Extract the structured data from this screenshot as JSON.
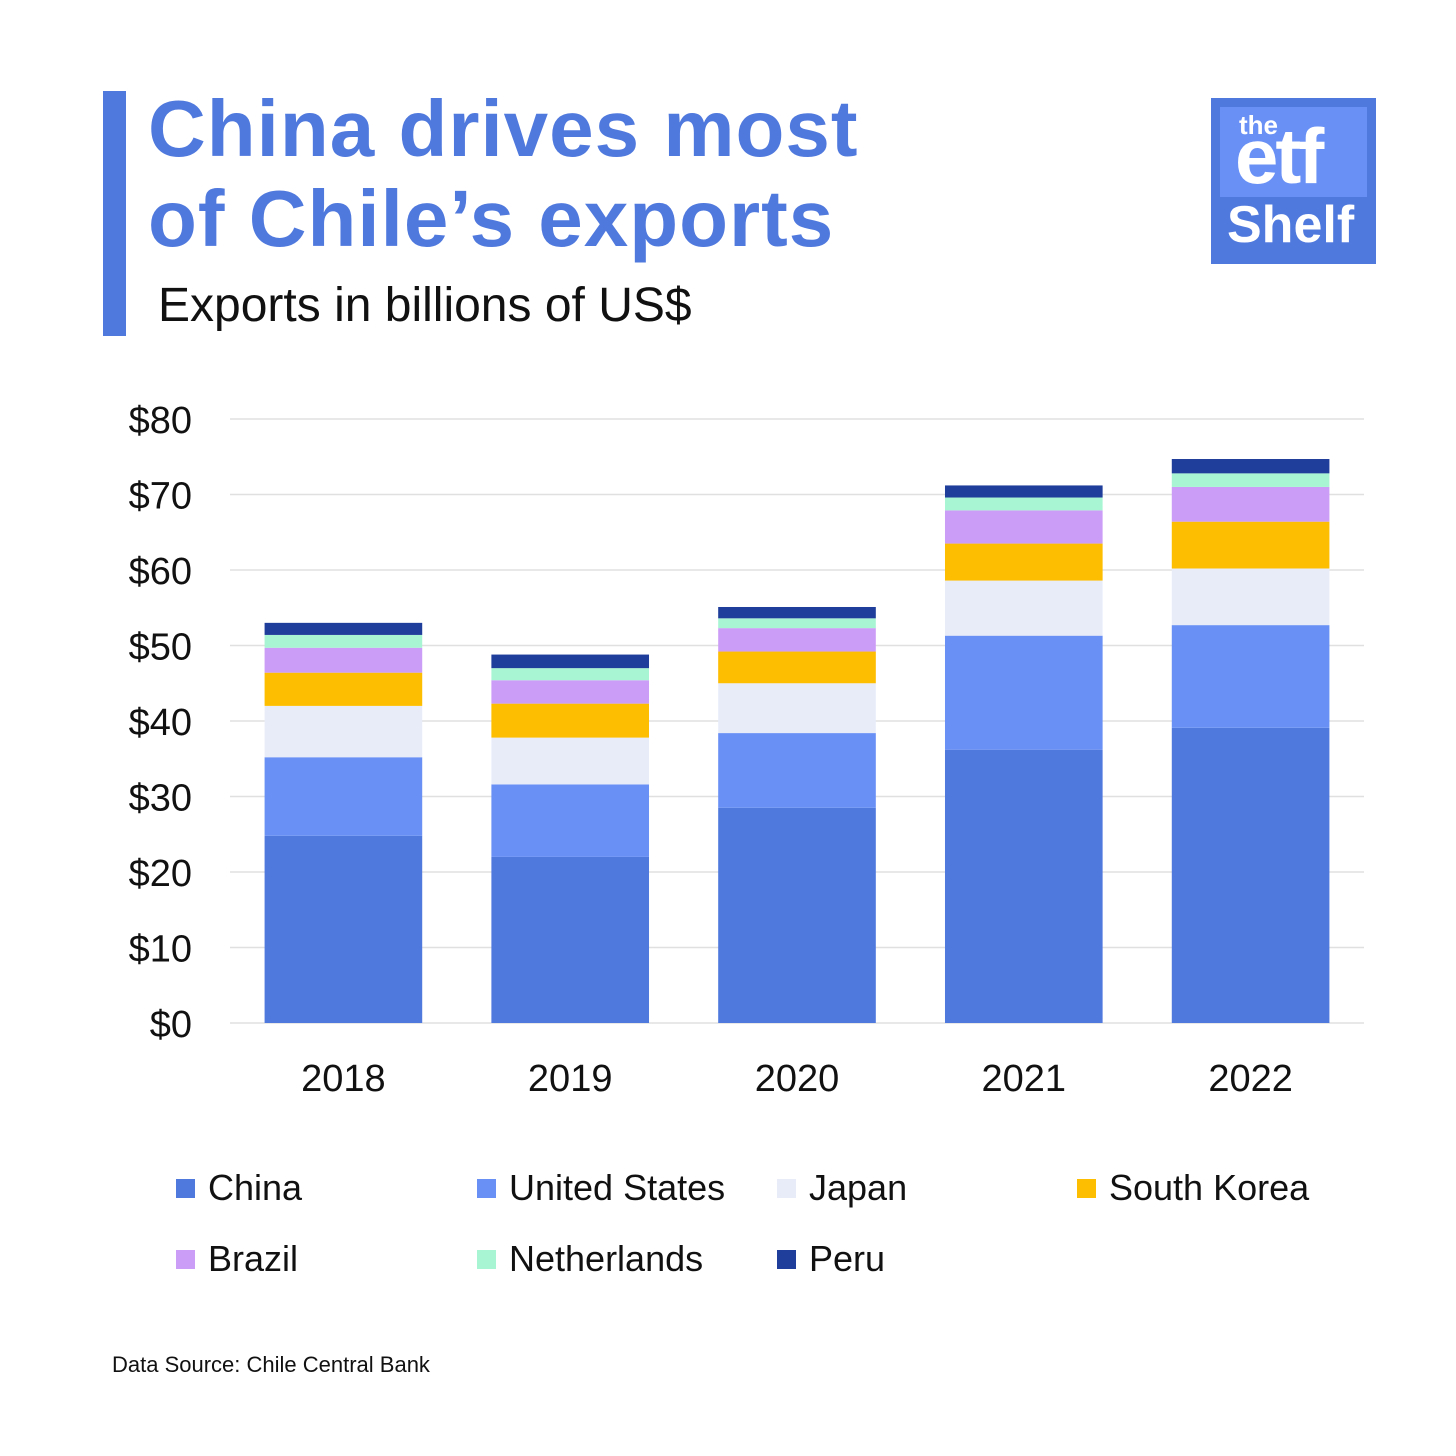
{
  "header": {
    "title_line1": "China drives most",
    "title_line2": "of Chile’s exports",
    "subtitle": "Exports in billions of US$"
  },
  "logo": {
    "line1": "the",
    "line2": "etf",
    "line3": "Shelf"
  },
  "colors": {
    "accent": "#5079de",
    "text": "#111111",
    "grid": "#e0e0e0"
  },
  "chart_data": {
    "type": "bar",
    "stacked": true,
    "categories": [
      "2018",
      "2019",
      "2020",
      "2021",
      "2022"
    ],
    "ylim": [
      0,
      80
    ],
    "yticks": [
      0,
      10,
      20,
      30,
      40,
      50,
      60,
      70,
      80
    ],
    "ytick_labels": [
      "$0",
      "$10",
      "$20",
      "$30",
      "$40",
      "$50",
      "$60",
      "$70",
      "$80"
    ],
    "grid": true,
    "legend_position": "bottom",
    "series": [
      {
        "name": "China",
        "color": "#5079de",
        "values": [
          24.8,
          22.0,
          28.5,
          36.2,
          39.1
        ]
      },
      {
        "name": "United States",
        "color": "#6990f5",
        "values": [
          10.4,
          9.6,
          9.9,
          15.1,
          13.6
        ]
      },
      {
        "name": "Japan",
        "color": "#e8ecf9",
        "values": [
          6.8,
          6.2,
          6.6,
          7.3,
          7.5
        ]
      },
      {
        "name": "South Korea",
        "color": "#fdbd00",
        "values": [
          4.4,
          4.5,
          4.2,
          4.9,
          6.2
        ]
      },
      {
        "name": "Brazil",
        "color": "#cc9df6",
        "values": [
          3.3,
          3.1,
          3.1,
          4.4,
          4.6
        ]
      },
      {
        "name": "Netherlands",
        "color": "#a8f5d3",
        "values": [
          1.7,
          1.6,
          1.3,
          1.7,
          1.8
        ]
      },
      {
        "name": "Peru",
        "color": "#1f3d9a",
        "values": [
          1.6,
          1.8,
          1.5,
          1.6,
          1.9
        ]
      }
    ]
  },
  "footer": {
    "source": "Data Source: Chile Central Bank"
  }
}
